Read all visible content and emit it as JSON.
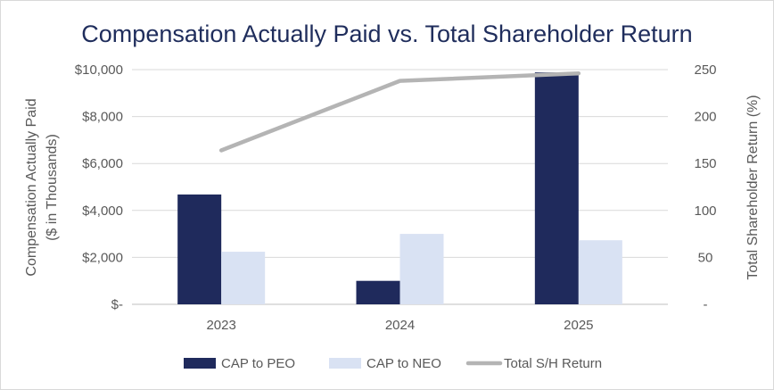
{
  "chart_data": {
    "type": "bar",
    "title": "Compensation Actually Paid vs. Total Shareholder Return",
    "categories": [
      "2023",
      "2024",
      "2025"
    ],
    "series": [
      {
        "name": "CAP to PEO",
        "kind": "bar",
        "axis": "left",
        "color": "#1f2a5c",
        "values": [
          4680,
          1000,
          9880
        ]
      },
      {
        "name": "CAP to NEO",
        "kind": "bar",
        "axis": "left",
        "color": "#d9e2f3",
        "values": [
          2240,
          3000,
          2730
        ]
      },
      {
        "name": "Total S/H Return",
        "kind": "line",
        "axis": "right",
        "color": "#b4b4b4",
        "values": [
          164,
          238,
          246
        ]
      }
    ],
    "ylabel": "Compensation Actually Paid",
    "ylabel_sub": "($ in Thousands)",
    "ylim": [
      0,
      10000
    ],
    "yticks": [
      "$-",
      "$2,000",
      "$4,000",
      "$6,000",
      "$8,000",
      "$10,000"
    ],
    "y2label": "Total Shareholder Return (%)",
    "y2lim": [
      0,
      250
    ],
    "y2ticks": [
      "-",
      "50",
      "100",
      "150",
      "200",
      "250"
    ],
    "grid": true,
    "legend_position": "bottom"
  }
}
